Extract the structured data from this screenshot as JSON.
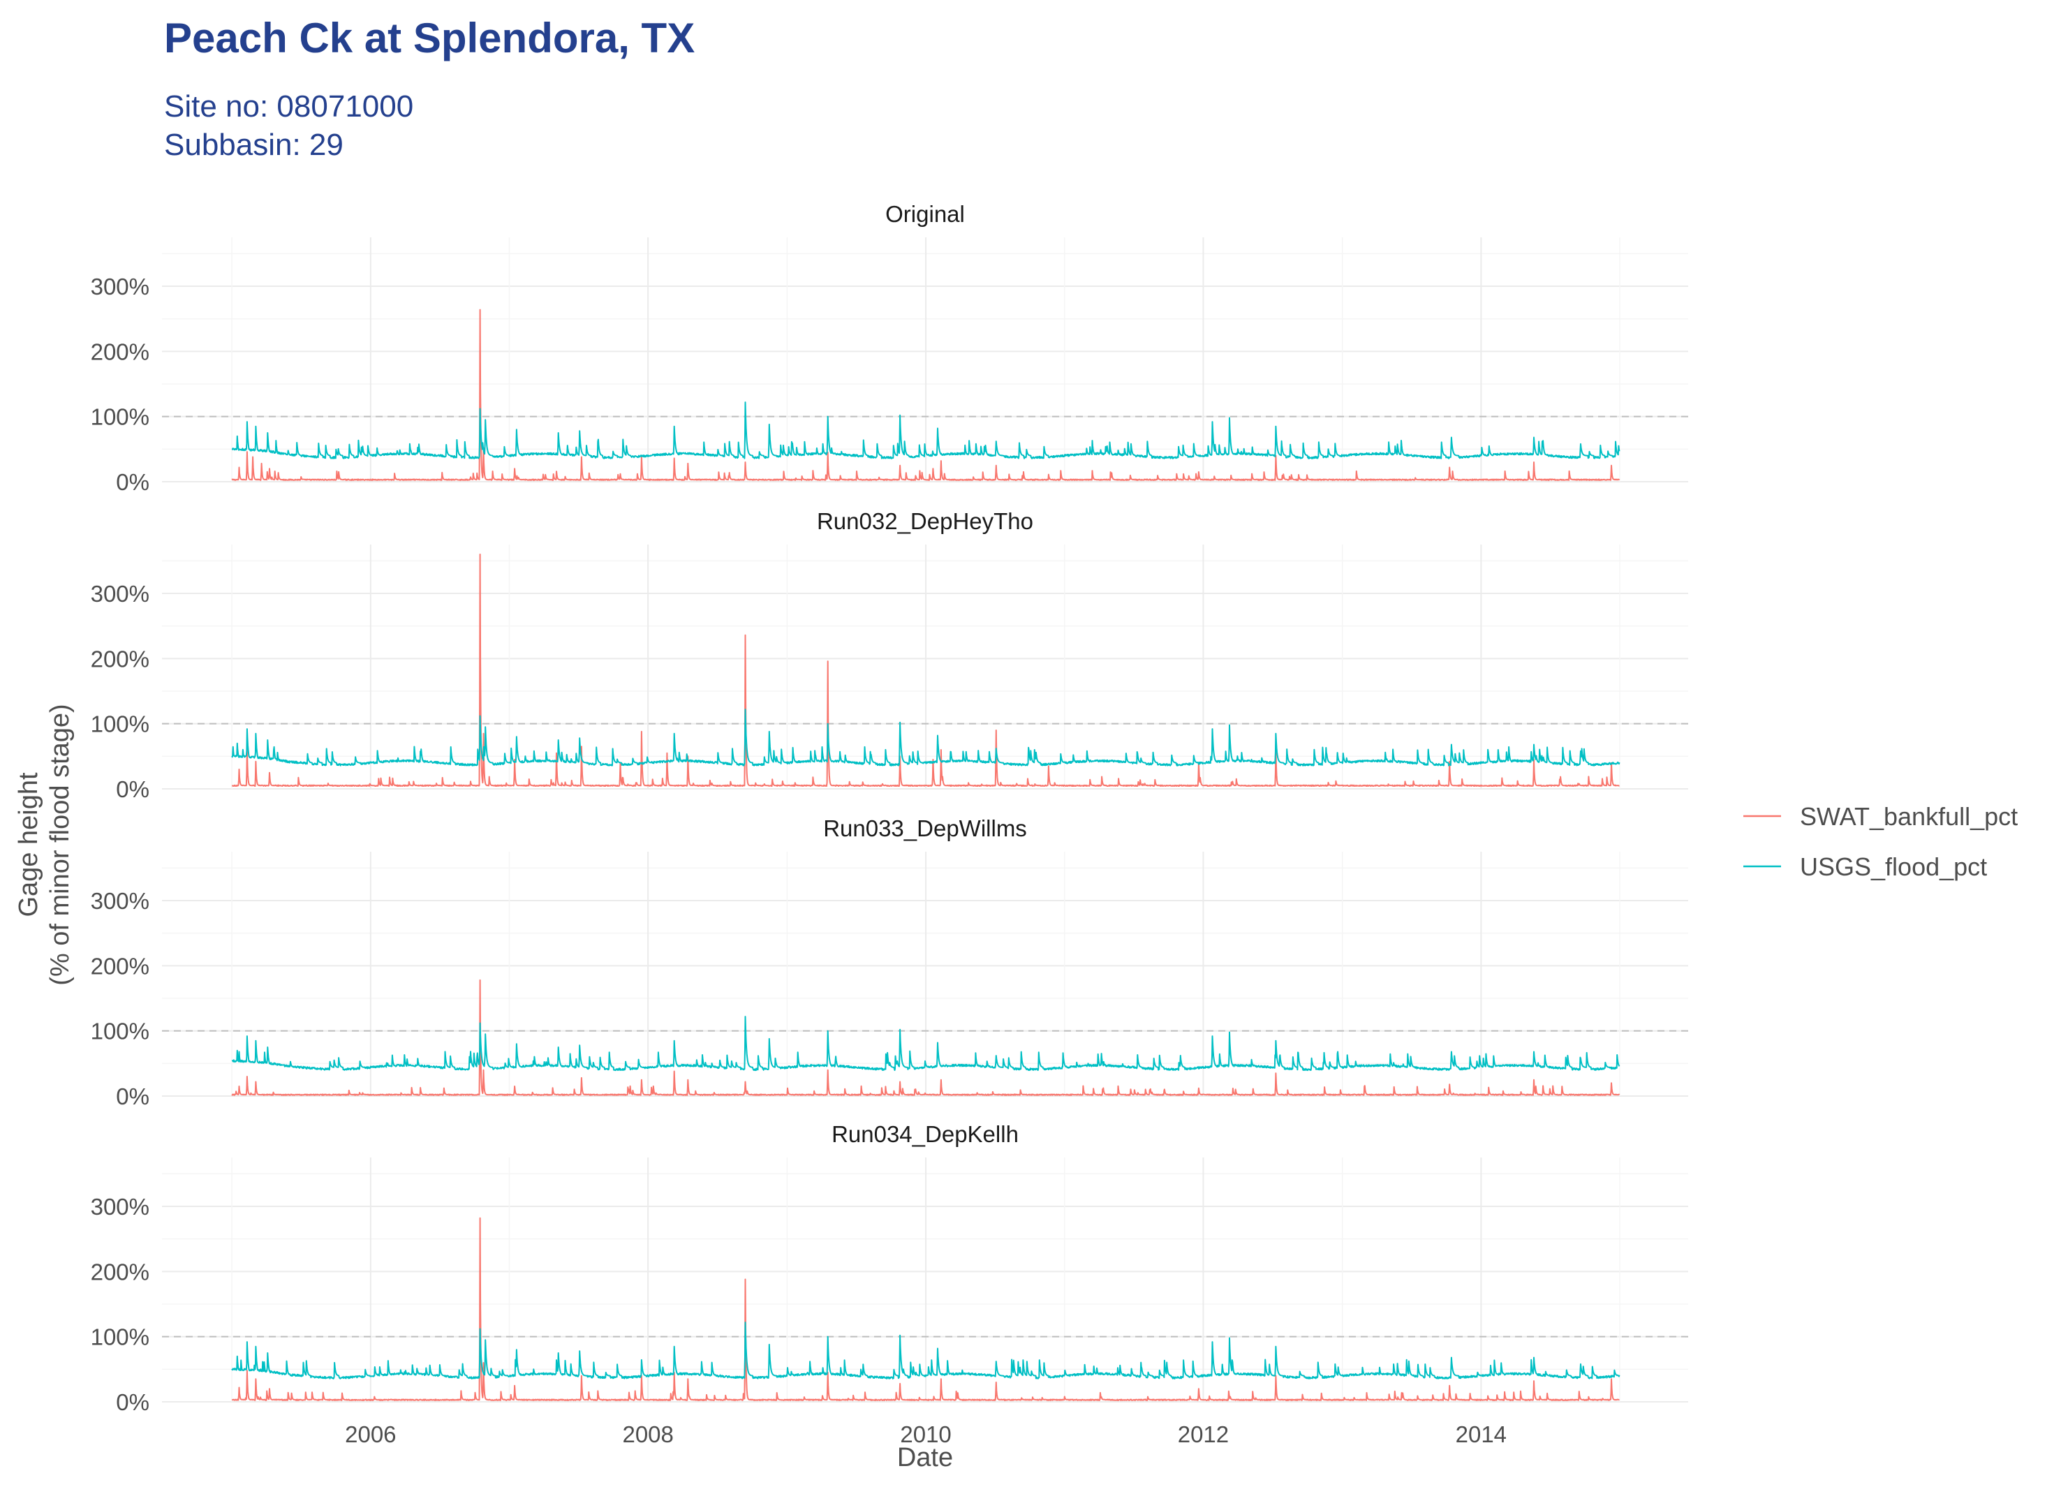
{
  "title": "Peach Ck at Splendora, TX",
  "subtitle_lines": [
    "Site no: 08071000",
    "Subbasin: 29"
  ],
  "colors": {
    "title": "#24408E",
    "SWAT_bankfull_pct": "#F8766D",
    "USGS_flood_pct": "#00BFC4",
    "grid_major": "#EBEBEB",
    "grid_minor": "#F5F5F5",
    "reference_line": "#BEBEBE"
  },
  "chart_data": {
    "type": "line",
    "xlabel": "Date",
    "ylabel_lines": [
      "Gage height",
      "(% of minor flood stage)"
    ],
    "x_range": [
      "2005-01-01",
      "2014-12-31"
    ],
    "xlim": [
      "2004-07-01",
      "2015-06-30"
    ],
    "ylim": [
      0,
      375
    ],
    "x_ticks": [
      "2006",
      "2008",
      "2010",
      "2012",
      "2014"
    ],
    "y_ticks": [
      "0%",
      "100%",
      "200%",
      "300%"
    ],
    "reference_line_y": 100,
    "grid": true,
    "legend_position": "right",
    "legend": [
      "SWAT_bankfull_pct",
      "USGS_flood_pct"
    ],
    "panels": [
      {
        "label": "Original",
        "series": [
          {
            "name": "SWAT_bankfull_pct",
            "baseline": 3,
            "peaks": [
              {
                "x": "2005-01-20",
                "y": 22
              },
              {
                "x": "2005-02-10",
                "y": 46
              },
              {
                "x": "2005-02-25",
                "y": 38
              },
              {
                "x": "2005-03-20",
                "y": 28
              },
              {
                "x": "2005-04-10",
                "y": 20
              },
              {
                "x": "2006-10-16",
                "y": 264
              },
              {
                "x": "2006-10-25",
                "y": 52
              },
              {
                "x": "2007-01-15",
                "y": 20
              },
              {
                "x": "2007-07-10",
                "y": 38
              },
              {
                "x": "2007-10-20",
                "y": 12
              },
              {
                "x": "2007-12-15",
                "y": 38
              },
              {
                "x": "2008-03-10",
                "y": 36
              },
              {
                "x": "2008-04-15",
                "y": 28
              },
              {
                "x": "2008-09-13",
                "y": 30
              },
              {
                "x": "2009-04-18",
                "y": 45
              },
              {
                "x": "2009-10-25",
                "y": 25
              },
              {
                "x": "2010-01-20",
                "y": 20
              },
              {
                "x": "2010-02-10",
                "y": 32
              },
              {
                "x": "2010-07-05",
                "y": 25
              },
              {
                "x": "2011-12-20",
                "y": 15
              },
              {
                "x": "2012-07-10",
                "y": 40
              },
              {
                "x": "2013-10-10",
                "y": 22
              },
              {
                "x": "2014-05-20",
                "y": 30
              },
              {
                "x": "2014-12-10",
                "y": 25
              }
            ]
          },
          {
            "name": "USGS_flood_pct",
            "baseline": 40,
            "peaks": [
              {
                "x": "2005-01-15",
                "y": 70
              },
              {
                "x": "2005-02-10",
                "y": 92
              },
              {
                "x": "2005-03-05",
                "y": 85
              },
              {
                "x": "2005-04-05",
                "y": 75
              },
              {
                "x": "2006-10-16",
                "y": 112
              },
              {
                "x": "2006-10-30",
                "y": 95
              },
              {
                "x": "2007-01-20",
                "y": 80
              },
              {
                "x": "2007-05-10",
                "y": 75
              },
              {
                "x": "2007-07-05",
                "y": 78
              },
              {
                "x": "2008-03-10",
                "y": 85
              },
              {
                "x": "2008-09-13",
                "y": 122
              },
              {
                "x": "2008-11-15",
                "y": 88
              },
              {
                "x": "2009-04-18",
                "y": 100
              },
              {
                "x": "2009-10-25",
                "y": 102
              },
              {
                "x": "2010-02-01",
                "y": 82
              },
              {
                "x": "2010-07-05",
                "y": 62
              },
              {
                "x": "2012-01-25",
                "y": 92
              },
              {
                "x": "2012-03-10",
                "y": 98
              },
              {
                "x": "2012-07-10",
                "y": 85
              },
              {
                "x": "2013-10-15",
                "y": 68
              },
              {
                "x": "2014-05-20",
                "y": 68
              },
              {
                "x": "2014-09-20",
                "y": 58
              }
            ]
          }
        ]
      },
      {
        "label": "Run032_DepHeyTho",
        "series": [
          {
            "name": "SWAT_bankfull_pct",
            "baseline": 5,
            "peaks": [
              {
                "x": "2005-01-20",
                "y": 30
              },
              {
                "x": "2005-02-10",
                "y": 62
              },
              {
                "x": "2005-03-05",
                "y": 42
              },
              {
                "x": "2005-04-10",
                "y": 25
              },
              {
                "x": "2006-10-16",
                "y": 360
              },
              {
                "x": "2006-10-25",
                "y": 85
              },
              {
                "x": "2007-01-15",
                "y": 45
              },
              {
                "x": "2007-05-05",
                "y": 55
              },
              {
                "x": "2007-07-10",
                "y": 65
              },
              {
                "x": "2007-10-20",
                "y": 40
              },
              {
                "x": "2007-12-15",
                "y": 88
              },
              {
                "x": "2008-02-20",
                "y": 55
              },
              {
                "x": "2008-04-15",
                "y": 50
              },
              {
                "x": "2008-09-13",
                "y": 236
              },
              {
                "x": "2009-04-18",
                "y": 196
              },
              {
                "x": "2009-10-25",
                "y": 50
              },
              {
                "x": "2010-01-20",
                "y": 45
              },
              {
                "x": "2010-02-10",
                "y": 60
              },
              {
                "x": "2010-07-05",
                "y": 90
              },
              {
                "x": "2010-11-20",
                "y": 35
              },
              {
                "x": "2011-12-20",
                "y": 40
              },
              {
                "x": "2012-07-10",
                "y": 60
              },
              {
                "x": "2013-10-10",
                "y": 42
              },
              {
                "x": "2014-05-20",
                "y": 45
              },
              {
                "x": "2014-12-10",
                "y": 40
              }
            ]
          },
          {
            "name": "USGS_flood_pct",
            "baseline": 40,
            "peaks": [
              {
                "x": "2005-01-15",
                "y": 70
              },
              {
                "x": "2005-02-10",
                "y": 92
              },
              {
                "x": "2005-03-05",
                "y": 85
              },
              {
                "x": "2005-04-05",
                "y": 75
              },
              {
                "x": "2006-10-16",
                "y": 112
              },
              {
                "x": "2006-10-30",
                "y": 95
              },
              {
                "x": "2007-01-20",
                "y": 80
              },
              {
                "x": "2007-05-10",
                "y": 75
              },
              {
                "x": "2007-07-05",
                "y": 78
              },
              {
                "x": "2008-03-10",
                "y": 85
              },
              {
                "x": "2008-09-13",
                "y": 122
              },
              {
                "x": "2008-11-15",
                "y": 88
              },
              {
                "x": "2009-04-18",
                "y": 100
              },
              {
                "x": "2009-10-25",
                "y": 102
              },
              {
                "x": "2010-02-01",
                "y": 82
              },
              {
                "x": "2010-07-05",
                "y": 62
              },
              {
                "x": "2012-01-25",
                "y": 92
              },
              {
                "x": "2012-03-10",
                "y": 98
              },
              {
                "x": "2012-07-10",
                "y": 85
              },
              {
                "x": "2013-10-15",
                "y": 68
              },
              {
                "x": "2014-05-20",
                "y": 68
              },
              {
                "x": "2014-09-20",
                "y": 58
              }
            ]
          }
        ]
      },
      {
        "label": "Run033_DepWillms",
        "series": [
          {
            "name": "SWAT_bankfull_pct",
            "baseline": 2,
            "peaks": [
              {
                "x": "2005-01-20",
                "y": 15
              },
              {
                "x": "2005-02-10",
                "y": 30
              },
              {
                "x": "2005-03-05",
                "y": 22
              },
              {
                "x": "2006-10-16",
                "y": 178
              },
              {
                "x": "2006-10-25",
                "y": 40
              },
              {
                "x": "2007-01-15",
                "y": 15
              },
              {
                "x": "2007-07-10",
                "y": 28
              },
              {
                "x": "2007-12-15",
                "y": 25
              },
              {
                "x": "2008-03-10",
                "y": 38
              },
              {
                "x": "2008-04-15",
                "y": 25
              },
              {
                "x": "2008-09-13",
                "y": 22
              },
              {
                "x": "2009-04-18",
                "y": 40
              },
              {
                "x": "2009-10-25",
                "y": 22
              },
              {
                "x": "2010-02-10",
                "y": 25
              },
              {
                "x": "2011-12-20",
                "y": 12
              },
              {
                "x": "2012-07-10",
                "y": 35
              },
              {
                "x": "2013-10-10",
                "y": 18
              },
              {
                "x": "2014-05-20",
                "y": 25
              },
              {
                "x": "2014-12-10",
                "y": 20
              }
            ]
          },
          {
            "name": "USGS_flood_pct",
            "baseline": 44,
            "peaks": [
              {
                "x": "2005-01-15",
                "y": 70
              },
              {
                "x": "2005-02-10",
                "y": 92
              },
              {
                "x": "2005-03-05",
                "y": 85
              },
              {
                "x": "2005-04-05",
                "y": 75
              },
              {
                "x": "2006-10-16",
                "y": 112
              },
              {
                "x": "2006-10-30",
                "y": 95
              },
              {
                "x": "2007-01-20",
                "y": 80
              },
              {
                "x": "2007-05-10",
                "y": 75
              },
              {
                "x": "2007-07-05",
                "y": 78
              },
              {
                "x": "2008-03-10",
                "y": 85
              },
              {
                "x": "2008-09-13",
                "y": 122
              },
              {
                "x": "2008-11-15",
                "y": 88
              },
              {
                "x": "2009-04-18",
                "y": 100
              },
              {
                "x": "2009-10-25",
                "y": 102
              },
              {
                "x": "2010-02-01",
                "y": 82
              },
              {
                "x": "2010-07-05",
                "y": 62
              },
              {
                "x": "2012-01-25",
                "y": 92
              },
              {
                "x": "2012-03-10",
                "y": 98
              },
              {
                "x": "2012-07-10",
                "y": 85
              },
              {
                "x": "2013-10-15",
                "y": 68
              },
              {
                "x": "2014-05-20",
                "y": 68
              },
              {
                "x": "2014-09-20",
                "y": 58
              }
            ]
          }
        ]
      },
      {
        "label": "Run034_DepKellh",
        "series": [
          {
            "name": "SWAT_bankfull_pct",
            "baseline": 3,
            "peaks": [
              {
                "x": "2005-01-20",
                "y": 22
              },
              {
                "x": "2005-02-10",
                "y": 48
              },
              {
                "x": "2005-03-05",
                "y": 35
              },
              {
                "x": "2005-04-10",
                "y": 20
              },
              {
                "x": "2006-10-16",
                "y": 282
              },
              {
                "x": "2006-10-25",
                "y": 60
              },
              {
                "x": "2007-01-15",
                "y": 25
              },
              {
                "x": "2007-07-10",
                "y": 40
              },
              {
                "x": "2007-12-15",
                "y": 40
              },
              {
                "x": "2008-03-10",
                "y": 45
              },
              {
                "x": "2008-04-15",
                "y": 35
              },
              {
                "x": "2008-09-13",
                "y": 188
              },
              {
                "x": "2009-04-18",
                "y": 45
              },
              {
                "x": "2009-10-25",
                "y": 28
              },
              {
                "x": "2010-02-10",
                "y": 35
              },
              {
                "x": "2010-07-05",
                "y": 30
              },
              {
                "x": "2011-12-20",
                "y": 20
              },
              {
                "x": "2012-07-10",
                "y": 40
              },
              {
                "x": "2013-10-10",
                "y": 25
              },
              {
                "x": "2014-05-20",
                "y": 32
              },
              {
                "x": "2014-12-10",
                "y": 35
              }
            ]
          },
          {
            "name": "USGS_flood_pct",
            "baseline": 40,
            "peaks": [
              {
                "x": "2005-01-15",
                "y": 70
              },
              {
                "x": "2005-02-10",
                "y": 92
              },
              {
                "x": "2005-03-05",
                "y": 85
              },
              {
                "x": "2005-04-05",
                "y": 75
              },
              {
                "x": "2006-10-16",
                "y": 112
              },
              {
                "x": "2006-10-30",
                "y": 95
              },
              {
                "x": "2007-01-20",
                "y": 80
              },
              {
                "x": "2007-05-10",
                "y": 75
              },
              {
                "x": "2007-07-05",
                "y": 78
              },
              {
                "x": "2008-03-10",
                "y": 85
              },
              {
                "x": "2008-09-13",
                "y": 122
              },
              {
                "x": "2008-11-15",
                "y": 88
              },
              {
                "x": "2009-04-18",
                "y": 100
              },
              {
                "x": "2009-10-25",
                "y": 102
              },
              {
                "x": "2010-02-01",
                "y": 82
              },
              {
                "x": "2010-07-05",
                "y": 62
              },
              {
                "x": "2012-01-25",
                "y": 92
              },
              {
                "x": "2012-03-10",
                "y": 98
              },
              {
                "x": "2012-07-10",
                "y": 85
              },
              {
                "x": "2013-10-15",
                "y": 68
              },
              {
                "x": "2014-05-20",
                "y": 68
              },
              {
                "x": "2014-09-20",
                "y": 58
              }
            ]
          }
        ]
      }
    ]
  }
}
